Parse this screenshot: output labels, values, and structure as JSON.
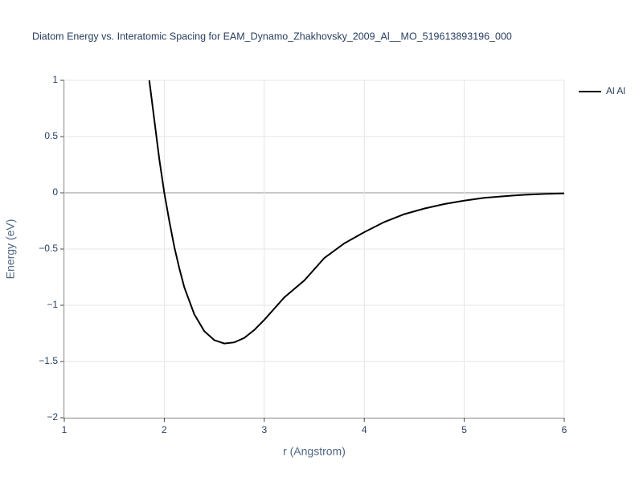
{
  "chart_data": {
    "type": "line",
    "title": "Diatom Energy vs. Interatomic Spacing for EAM_Dynamo_Zhakhovsky_2009_Al__MO_519613893196_000",
    "x_label": "r (Angstrom)",
    "y_label": "Energy (eV)",
    "x": [
      1.85,
      1.9,
      1.95,
      2.0,
      2.05,
      2.1,
      2.15,
      2.2,
      2.3,
      2.4,
      2.5,
      2.6,
      2.7,
      2.8,
      2.9,
      3.0,
      3.2,
      3.4,
      3.6,
      3.8,
      4.0,
      4.2,
      4.4,
      4.6,
      4.8,
      5.0,
      5.2,
      5.4,
      5.6,
      5.8,
      6.0
    ],
    "series": [
      {
        "name": "Al Al",
        "color": "#000000",
        "values": [
          1.0,
          0.65,
          0.3,
          0.0,
          -0.25,
          -0.48,
          -0.67,
          -0.84,
          -1.08,
          -1.23,
          -1.31,
          -1.34,
          -1.33,
          -1.29,
          -1.22,
          -1.13,
          -0.93,
          -0.78,
          -0.58,
          -0.45,
          -0.35,
          -0.26,
          -0.19,
          -0.14,
          -0.1,
          -0.07,
          -0.045,
          -0.03,
          -0.018,
          -0.01,
          -0.005
        ]
      }
    ],
    "xlim": [
      1,
      6
    ],
    "xticks": [
      1,
      2,
      3,
      4,
      5,
      6
    ],
    "ylim": [
      -2,
      1
    ],
    "yticks": [
      {
        "value": -2,
        "label": "−2"
      },
      {
        "value": -1.5,
        "label": "−1.5"
      },
      {
        "value": -1,
        "label": "−1"
      },
      {
        "value": -0.5,
        "label": "−0.5"
      },
      0,
      0.5,
      1
    ],
    "grid": true,
    "legend": "top-right"
  }
}
